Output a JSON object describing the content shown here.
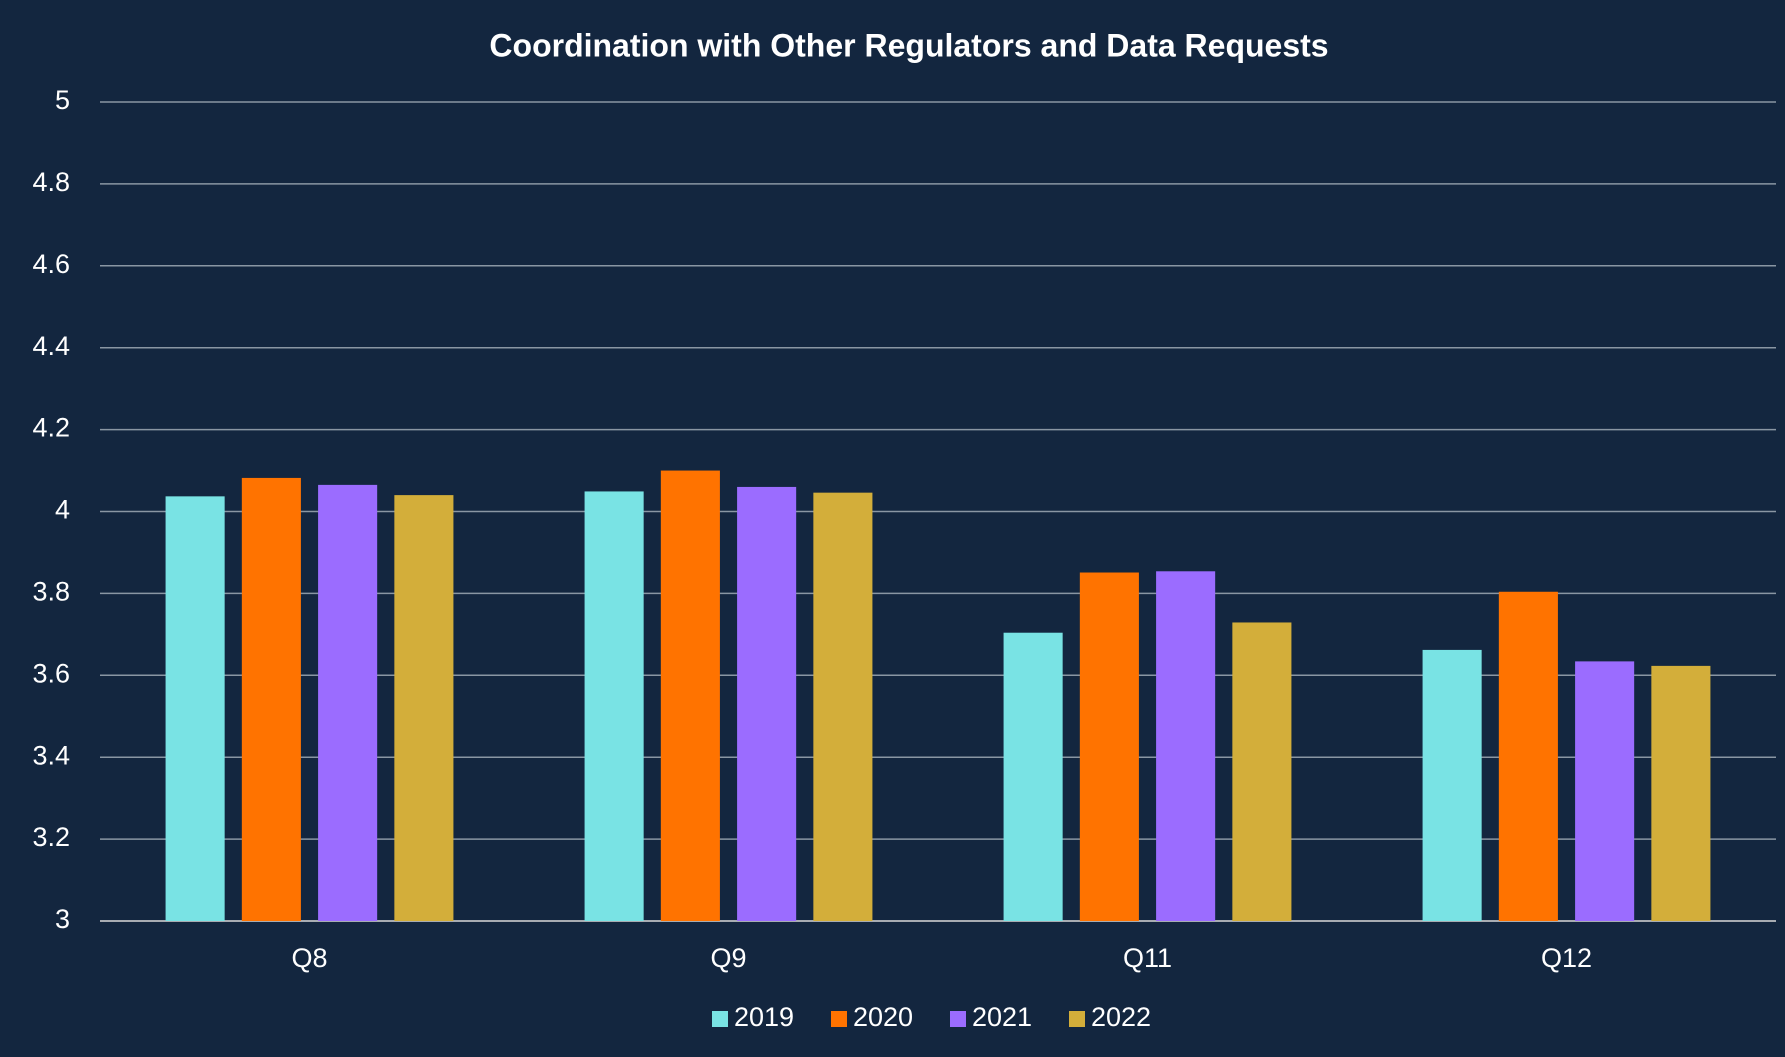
{
  "chart_data": {
    "type": "bar",
    "title": "Coordination with Other Regulators and Data Requests",
    "categories": [
      "Q8",
      "Q9",
      "Q11",
      "Q12"
    ],
    "series": [
      {
        "name": "2019",
        "color": "#79e3e4",
        "values": [
          4.037,
          4.049,
          3.704,
          3.662
        ]
      },
      {
        "name": "2020",
        "color": "#ff7300",
        "values": [
          4.082,
          4.1,
          3.851,
          3.804
        ]
      },
      {
        "name": "2021",
        "color": "#9b6cff",
        "values": [
          4.065,
          4.06,
          3.854,
          3.634
        ]
      },
      {
        "name": "2022",
        "color": "#d3ae3a",
        "values": [
          4.04,
          4.046,
          3.729,
          3.623
        ]
      }
    ],
    "ylim": [
      3,
      5
    ],
    "yticks": [
      3,
      3.2,
      3.4,
      3.6,
      3.8,
      4,
      4.2,
      4.4,
      4.6,
      4.8,
      5
    ],
    "grid": true,
    "legend": "bottom"
  }
}
